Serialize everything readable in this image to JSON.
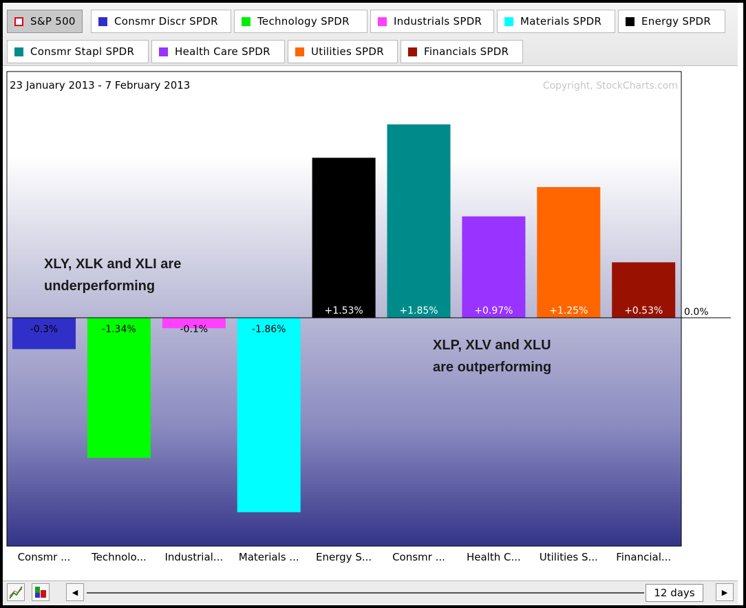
{
  "tabs": [
    {
      "label": "S&P 500",
      "color": "#e0001a",
      "active": true,
      "hollow": true
    },
    {
      "label": "Consmr Discr SPDR",
      "color": "#3030c8"
    },
    {
      "label": "Technology SPDR",
      "color": "#00ee00"
    },
    {
      "label": "Industrials SPDR",
      "color": "#ff40ff"
    },
    {
      "label": "Materials SPDR",
      "color": "#00ffff"
    },
    {
      "label": "Energy SPDR",
      "color": "#000000"
    },
    {
      "label": "Consmr Stapl SPDR",
      "color": "#008b8b"
    },
    {
      "label": "Health Care SPDR",
      "color": "#9933ff"
    },
    {
      "label": "Utilities SPDR",
      "color": "#ff6600"
    },
    {
      "label": "Financials SPDR",
      "color": "#991100"
    }
  ],
  "chart_data": {
    "type": "bar",
    "date_range": "23 January 2013 - 7 February 2013",
    "copyright": "Copyright, StockCharts.com",
    "zero_label": "0.0%",
    "categories": [
      "Consmr ...",
      "Technolo...",
      "Industrial...",
      "Materials ...",
      "Energy S...",
      "Consmr ...",
      "Health C...",
      "Utilities S...",
      "Financial..."
    ],
    "values": [
      -0.3,
      -1.34,
      -0.1,
      -1.86,
      1.53,
      1.85,
      0.97,
      1.25,
      0.53
    ],
    "value_labels": [
      "-0.3%",
      "-1.34%",
      "-0.1%",
      "-1.86%",
      "+1.53%",
      "+1.85%",
      "+0.97%",
      "+1.25%",
      "+0.53%"
    ],
    "colors": [
      "#3030c8",
      "#00ff00",
      "#ff40ff",
      "#00ffff",
      "#000000",
      "#008b8b",
      "#9933ff",
      "#ff6600",
      "#991100"
    ],
    "ylim": [
      -2.2,
      2.2
    ],
    "grid": false,
    "annotations": [
      {
        "id": "under",
        "lines": [
          "XLY, XLK and XLI are",
          "underperforming"
        ]
      },
      {
        "id": "out",
        "lines": [
          "XLP, XLV and XLU",
          "are outperforming"
        ]
      }
    ]
  },
  "status": {
    "period": "12 days"
  }
}
